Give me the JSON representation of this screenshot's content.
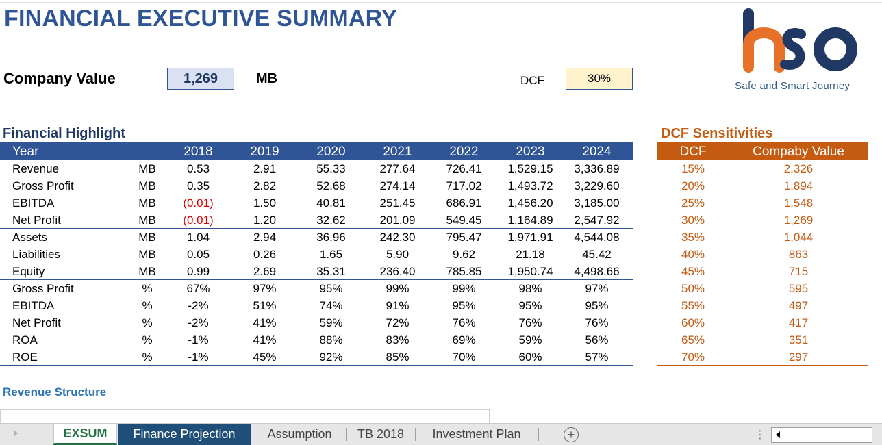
{
  "title": "FINANCIAL EXECUTIVE SUMMARY",
  "company_value": {
    "label": "Company Value",
    "value": "1,269",
    "unit": "MB"
  },
  "dcf": {
    "label": "DCF",
    "value": "30%"
  },
  "logo": {
    "tagline": "Safe and Smart Journey",
    "colors": {
      "orange": "#e8712a",
      "navy": "#1f3864"
    }
  },
  "financial_highlight": {
    "title": "Financial Highlight",
    "header": {
      "label": "Year",
      "years": [
        "2018",
        "2019",
        "2020",
        "2021",
        "2022",
        "2023",
        "2024"
      ]
    },
    "rows": [
      {
        "label": "Revenue",
        "unit": "MB",
        "values": [
          "0.53",
          "2.91",
          "55.33",
          "277.64",
          "726.41",
          "1,529.15",
          "3,336.89"
        ]
      },
      {
        "label": "Gross Profit",
        "unit": "MB",
        "values": [
          "0.35",
          "2.82",
          "52.68",
          "274.14",
          "717.02",
          "1,493.72",
          "3,229.60"
        ]
      },
      {
        "label": "EBITDA",
        "unit": "MB",
        "values": [
          "(0.01)",
          "1.50",
          "40.81",
          "251.45",
          "686.91",
          "1,456.20",
          "3,185.00"
        ]
      },
      {
        "label": "Net Profit",
        "unit": "MB",
        "values": [
          "(0.01)",
          "1.20",
          "32.62",
          "201.09",
          "549.45",
          "1,164.89",
          "2,547.92"
        ]
      },
      {
        "label": "Assets",
        "unit": "MB",
        "values": [
          "1.04",
          "2.94",
          "36.96",
          "242.30",
          "795.47",
          "1,971.91",
          "4,544.08"
        ]
      },
      {
        "label": "Liabilities",
        "unit": "MB",
        "values": [
          "0.05",
          "0.26",
          "1.65",
          "5.90",
          "9.62",
          "21.18",
          "45.42"
        ]
      },
      {
        "label": "Equity",
        "unit": "MB",
        "values": [
          "0.99",
          "2.69",
          "35.31",
          "236.40",
          "785.85",
          "1,950.74",
          "4,498.66"
        ]
      },
      {
        "label": "Gross Profit",
        "unit": "%",
        "values": [
          "67%",
          "97%",
          "95%",
          "99%",
          "99%",
          "98%",
          "97%"
        ]
      },
      {
        "label": "EBITDA",
        "unit": "%",
        "values": [
          "-2%",
          "51%",
          "74%",
          "91%",
          "95%",
          "95%",
          "95%"
        ]
      },
      {
        "label": "Net Profit",
        "unit": "%",
        "values": [
          "-2%",
          "41%",
          "59%",
          "72%",
          "76%",
          "76%",
          "76%"
        ]
      },
      {
        "label": "ROA",
        "unit": "%",
        "values": [
          "-1%",
          "41%",
          "88%",
          "83%",
          "69%",
          "59%",
          "56%"
        ]
      },
      {
        "label": "ROE",
        "unit": "%",
        "values": [
          "-1%",
          "45%",
          "92%",
          "85%",
          "70%",
          "60%",
          "57%"
        ]
      }
    ]
  },
  "dcf_sensitivities": {
    "title": "DCF Sensitivities",
    "header": [
      "DCF",
      "Compaby Value"
    ],
    "rows": [
      [
        "15%",
        "2,326"
      ],
      [
        "20%",
        "1,894"
      ],
      [
        "25%",
        "1,548"
      ],
      [
        "30%",
        "1,269"
      ],
      [
        "35%",
        "1,044"
      ],
      [
        "40%",
        "863"
      ],
      [
        "45%",
        "715"
      ],
      [
        "50%",
        "595"
      ],
      [
        "55%",
        "497"
      ],
      [
        "60%",
        "417"
      ],
      [
        "65%",
        "351"
      ],
      [
        "70%",
        "297"
      ]
    ]
  },
  "revenue_structure": {
    "title": "Revenue Structure"
  },
  "sheet_tabs": [
    {
      "label": "EXSUM",
      "state": "active"
    },
    {
      "label": "Finance Projection",
      "state": "selected"
    },
    {
      "label": "Assumption",
      "state": "normal"
    },
    {
      "label": "TB 2018",
      "state": "normal"
    },
    {
      "label": "Investment Plan",
      "state": "normal"
    }
  ],
  "add_sheet_glyph": "+",
  "colors": {
    "title_blue": "#2f5597",
    "header_blue": "#2f5597",
    "header_orange": "#c55a11",
    "negative_red": "#e00000",
    "active_tab_green": "#217346"
  }
}
